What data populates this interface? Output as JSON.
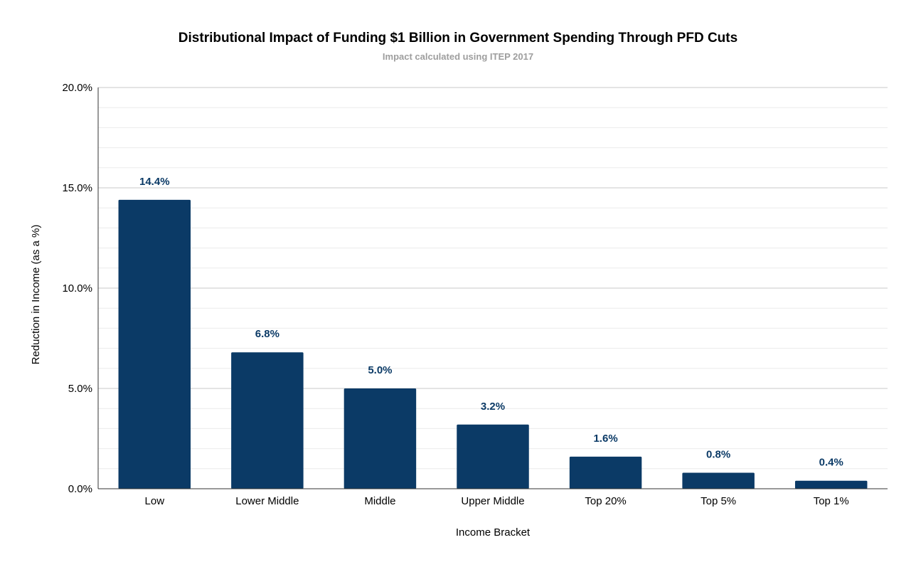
{
  "chart_data": {
    "type": "bar",
    "title": "Distributional Impact of Funding $1 Billion in Government Spending Through PFD Cuts",
    "subtitle": "Impact calculated using ITEP 2017",
    "xlabel": "Income Bracket",
    "ylabel": "Reduction in Income (as a %)",
    "categories": [
      "Low",
      "Lower Middle",
      "Middle",
      "Upper Middle",
      "Top 20%",
      "Top 5%",
      "Top 1%"
    ],
    "values": [
      14.4,
      6.8,
      5.0,
      3.2,
      1.6,
      0.8,
      0.4
    ],
    "data_labels": [
      "14.4%",
      "6.8%",
      "5.0%",
      "3.2%",
      "1.6%",
      "0.8%",
      "0.4%"
    ],
    "ylim": [
      0,
      20
    ],
    "yticks": [
      0,
      5,
      10,
      15,
      20
    ],
    "ytick_labels": [
      "0.0%",
      "5.0%",
      "10.0%",
      "15.0%",
      "20.0%"
    ],
    "grid": true,
    "legend": "none",
    "colors": {
      "bar": "#0b3a66",
      "data_label": "#0b3a66",
      "grid_major": "#c9c9c9",
      "grid_minor": "#ececec",
      "axis": "#333333"
    }
  }
}
